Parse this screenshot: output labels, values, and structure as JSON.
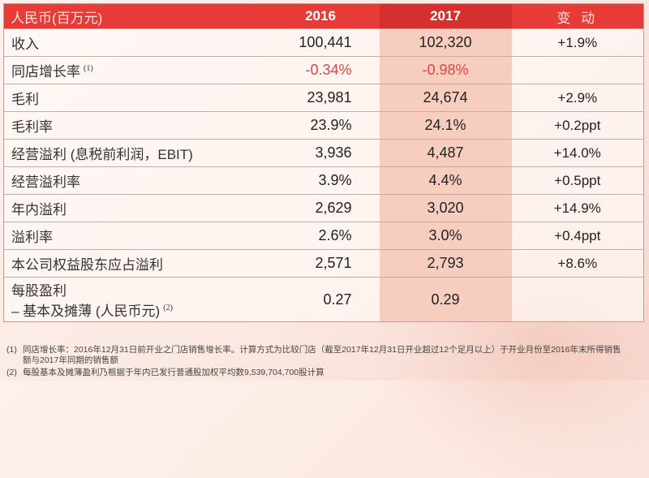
{
  "header": {
    "label": "人民币(百万元)",
    "col_2016": "2016",
    "col_2017": "2017",
    "col_change": "变 动"
  },
  "rows": [
    {
      "label": "收入",
      "sup": "",
      "v2016": "100,441",
      "v2017": "102,320",
      "change": "+1.9%"
    },
    {
      "label": "同店增长率",
      "sup": "(1)",
      "v2016": "-0.34%",
      "v2017": "-0.98%",
      "change": ""
    },
    {
      "label": "毛利",
      "sup": "",
      "v2016": "23,981",
      "v2017": "24,674",
      "change": "+2.9%"
    },
    {
      "label": "毛利率",
      "sup": "",
      "v2016": "23.9%",
      "v2017": "24.1%",
      "change": "+0.2ppt"
    },
    {
      "label": "经营溢利 (息税前利润，EBIT)",
      "sup": "",
      "v2016": "3,936",
      "v2017": "4,487",
      "change": "+14.0%"
    },
    {
      "label": "经营溢利率",
      "sup": "",
      "v2016": "3.9%",
      "v2017": "4.4%",
      "change": "+0.5ppt"
    },
    {
      "label": "年内溢利",
      "sup": "",
      "v2016": "2,629",
      "v2017": "3,020",
      "change": "+14.9%"
    },
    {
      "label": "溢利率",
      "sup": "",
      "v2016": "2.6%",
      "v2017": "3.0%",
      "change": "+0.4ppt"
    },
    {
      "label": "本公司权益股东应占溢利",
      "sup": "",
      "v2016": "2,571",
      "v2017": "2,793",
      "change": "+8.6%"
    },
    {
      "label": "每股盈利",
      "label2": "– 基本及摊薄 (人民币元)",
      "sup": "(2)",
      "v2016": "0.27",
      "v2017": "0.29",
      "change": ""
    }
  ],
  "footnotes": [
    {
      "num": "(1)",
      "text": "同店增长率：2016年12月31日前开业之门店销售增长率。计算方式为比较门店（截至2017年12月31日开业超过12个足月以上）于开业月份至2016年末所得销售",
      "text2": "额与2017年同期的销售额"
    },
    {
      "num": "(2)",
      "text": "每股基本及摊薄盈利乃根据于年内已发行普通股加权平均数9,539,704,700股计算"
    }
  ],
  "colors": {
    "header_red": "#e83a36",
    "highlight_2017": "#f7cdbf",
    "negative_red": "#e04545"
  }
}
